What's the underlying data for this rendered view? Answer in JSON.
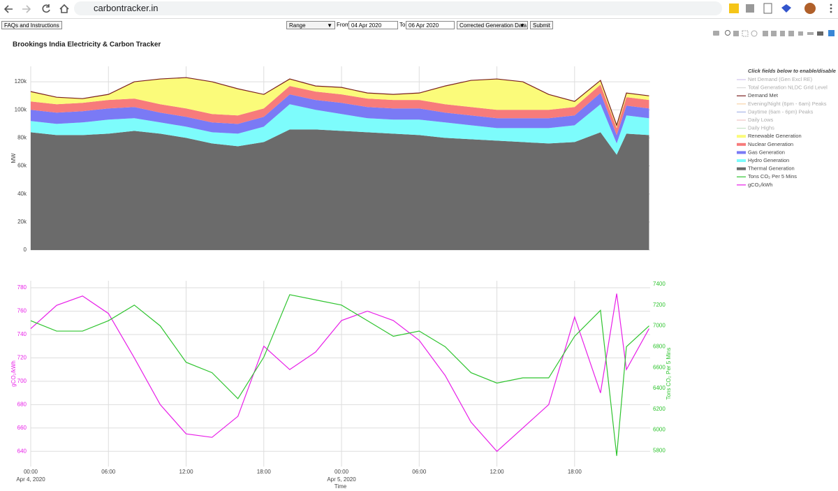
{
  "browser": {
    "url": "carbontracker.in"
  },
  "toolbar": {
    "faq": "FAQs and Instructions",
    "range": "Range",
    "from_label": "From",
    "from": "04 Apr 2020",
    "to_label": "To",
    "to": "06 Apr 2020",
    "dataset": "Corrected Generation Data",
    "submit": "Submit"
  },
  "title": "Brookings India Electricity & Carbon Tracker",
  "chart_data": [
    {
      "type": "area",
      "y_label": "MW",
      "legend_title": "Click fields below to enable/disable",
      "x": [
        "2020-04-04 00:00",
        "2020-04-04 02:00",
        "2020-04-04 04:00",
        "2020-04-04 06:00",
        "2020-04-04 08:00",
        "2020-04-04 10:00",
        "2020-04-04 12:00",
        "2020-04-04 14:00",
        "2020-04-04 16:00",
        "2020-04-04 18:00",
        "2020-04-04 20:00",
        "2020-04-04 22:00",
        "2020-04-05 00:00",
        "2020-04-05 02:00",
        "2020-04-05 04:00",
        "2020-04-05 06:00",
        "2020-04-05 08:00",
        "2020-04-05 10:00",
        "2020-04-05 12:00",
        "2020-04-05 14:00",
        "2020-04-05 16:00",
        "2020-04-05 18:00",
        "2020-04-05 20:00",
        "2020-04-05 21:15",
        "2020-04-05 22:00",
        "2020-04-05 23:45"
      ],
      "xlim": [
        "2020-04-04 00:00",
        "2020-04-05 23:50"
      ],
      "xticks": [
        "2020-04-04 00:00",
        "2020-04-04 06:00",
        "2020-04-04 12:00",
        "2020-04-04 18:00",
        "2020-04-05 00:00",
        "2020-04-05 06:00",
        "2020-04-05 12:00",
        "2020-04-05 18:00"
      ],
      "ylim": [
        0,
        131000
      ],
      "yticks": [
        0,
        {
          "value": 20000,
          "label": "20k"
        },
        {
          "value": 40000,
          "label": "40k"
        },
        {
          "value": 60000,
          "label": "60k"
        },
        {
          "value": 80000,
          "label": "80k"
        },
        {
          "value": 100000,
          "label": "100k"
        },
        {
          "value": 120000,
          "label": "120k"
        }
      ],
      "grid": true,
      "series": [
        {
          "name": "Thermal Generation",
          "color": "#6b6b6b",
          "stacked": true,
          "values": [
            84000,
            82000,
            82000,
            83000,
            85000,
            83000,
            80000,
            76000,
            74000,
            77000,
            86000,
            86000,
            85000,
            84000,
            83000,
            82000,
            80000,
            79000,
            78000,
            77000,
            76000,
            77000,
            84000,
            68000,
            83000,
            82000
          ]
        },
        {
          "name": "Hydro Generation",
          "color": "#7dfcfc",
          "stacked": true,
          "values": [
            8000,
            8000,
            9000,
            10000,
            9000,
            8000,
            8000,
            8000,
            9000,
            11000,
            18000,
            14000,
            12000,
            10000,
            10000,
            11000,
            11000,
            10000,
            9000,
            10000,
            11000,
            12000,
            20000,
            8000,
            13000,
            12000
          ]
        },
        {
          "name": "Gas Generation",
          "color": "#7a7af5",
          "stacked": true,
          "values": [
            8000,
            8000,
            8000,
            8000,
            8000,
            7000,
            7000,
            7000,
            7000,
            7000,
            7000,
            7000,
            8000,
            8000,
            8000,
            8000,
            7000,
            7000,
            7000,
            7000,
            7000,
            7000,
            8000,
            6000,
            7000,
            7000
          ]
        },
        {
          "name": "Nuclear Generation",
          "color": "#f77b7b",
          "stacked": true,
          "values": [
            6000,
            6000,
            6000,
            6000,
            6000,
            6000,
            6000,
            6000,
            6000,
            6000,
            6000,
            6000,
            6000,
            6000,
            6000,
            6000,
            6000,
            6000,
            6000,
            6000,
            6000,
            6000,
            6000,
            5000,
            6000,
            6000
          ]
        },
        {
          "name": "Renewable Generation",
          "color": "#fbfb7a",
          "stacked": true,
          "values": [
            7000,
            5000,
            3000,
            4000,
            12000,
            18000,
            22000,
            23000,
            19000,
            10000,
            5000,
            4000,
            5000,
            4000,
            4000,
            5000,
            13000,
            19000,
            22000,
            20000,
            11000,
            4000,
            3000,
            2000,
            3000,
            3000
          ]
        },
        {
          "name": "Demand Met",
          "color": "#7a1f1f",
          "stacked": false,
          "values": [
            113000,
            109000,
            108000,
            111000,
            120000,
            122000,
            123000,
            120000,
            115000,
            111000,
            122000,
            117000,
            116000,
            112000,
            111000,
            112000,
            117000,
            121000,
            122000,
            120000,
            111000,
            106000,
            121000,
            89000,
            112000,
            110000
          ]
        }
      ],
      "hidden_series": [
        {
          "name": "Net Demand (Gen Excl RE)",
          "color": "#9b7fd4"
        },
        {
          "name": "Total Generation NLDC Grid Level",
          "color": "#b0b0b0"
        },
        {
          "name": "Evening/Night (6pm - 6am) Peaks",
          "color": "#f0a040"
        },
        {
          "name": "Daytime (6am - 6pm) Peaks",
          "color": "#4060d0"
        },
        {
          "name": "Daily Lows",
          "color": "#e08080"
        },
        {
          "name": "Daily Highs",
          "color": "#80c080"
        }
      ]
    },
    {
      "type": "line",
      "y_label": "gCO₂/kWh",
      "y2_label": "Tons CO₂ Per 5 Mins",
      "x_label": "Time",
      "x": [
        "2020-04-04 00:00",
        "2020-04-04 02:00",
        "2020-04-04 04:00",
        "2020-04-04 06:00",
        "2020-04-04 08:00",
        "2020-04-04 10:00",
        "2020-04-04 12:00",
        "2020-04-04 14:00",
        "2020-04-04 16:00",
        "2020-04-04 18:00",
        "2020-04-04 20:00",
        "2020-04-04 22:00",
        "2020-04-05 00:00",
        "2020-04-05 02:00",
        "2020-04-05 04:00",
        "2020-04-05 06:00",
        "2020-04-05 08:00",
        "2020-04-05 10:00",
        "2020-04-05 12:00",
        "2020-04-05 14:00",
        "2020-04-05 16:00",
        "2020-04-05 18:00",
        "2020-04-05 20:00",
        "2020-04-05 21:15",
        "2020-04-05 22:00",
        "2020-04-05 23:45"
      ],
      "xlim": [
        "2020-04-04 00:00",
        "2020-04-05 23:50"
      ],
      "xticks": [
        {
          "value": "2020-04-04 00:00",
          "label": "00:00"
        },
        {
          "value": "2020-04-04 06:00",
          "label": "06:00"
        },
        {
          "value": "2020-04-04 12:00",
          "label": "12:00"
        },
        {
          "value": "2020-04-04 18:00",
          "label": "18:00"
        },
        {
          "value": "2020-04-05 00:00",
          "label": "00:00"
        },
        {
          "value": "2020-04-05 06:00",
          "label": "06:00"
        },
        {
          "value": "2020-04-05 12:00",
          "label": "12:00"
        },
        {
          "value": "2020-04-05 18:00",
          "label": "18:00"
        }
      ],
      "x_sublabels": [
        {
          "value": "2020-04-04 00:00",
          "label": "Apr 4, 2020"
        },
        {
          "value": "2020-04-05 00:00",
          "label": "Apr 5, 2020"
        }
      ],
      "ylim": [
        627,
        786
      ],
      "yticks": [
        640,
        660,
        680,
        700,
        720,
        740,
        760,
        780
      ],
      "y2lim": [
        5647,
        7434
      ],
      "y2ticks": [
        5800,
        6000,
        6200,
        6400,
        6600,
        6800,
        7000,
        7200,
        7400
      ],
      "grid": true,
      "series": [
        {
          "name": "gCO₂/kWh",
          "color": "#e81ee8",
          "values": [
            745,
            765,
            773,
            758,
            720,
            680,
            655,
            652,
            670,
            730,
            710,
            725,
            752,
            760,
            752,
            735,
            705,
            665,
            640,
            660,
            680,
            755,
            690,
            775,
            710,
            745
          ]
        },
        {
          "name": "Tons CO₂ Per 5 Mins",
          "color": "#2fc42f",
          "axis": "y2",
          "values": [
            7050,
            6950,
            6950,
            7050,
            7200,
            7000,
            6650,
            6550,
            6300,
            6700,
            7300,
            7250,
            7200,
            7050,
            6900,
            6950,
            6800,
            6550,
            6450,
            6500,
            6500,
            6900,
            7150,
            5750,
            6800,
            7000
          ]
        }
      ]
    }
  ]
}
